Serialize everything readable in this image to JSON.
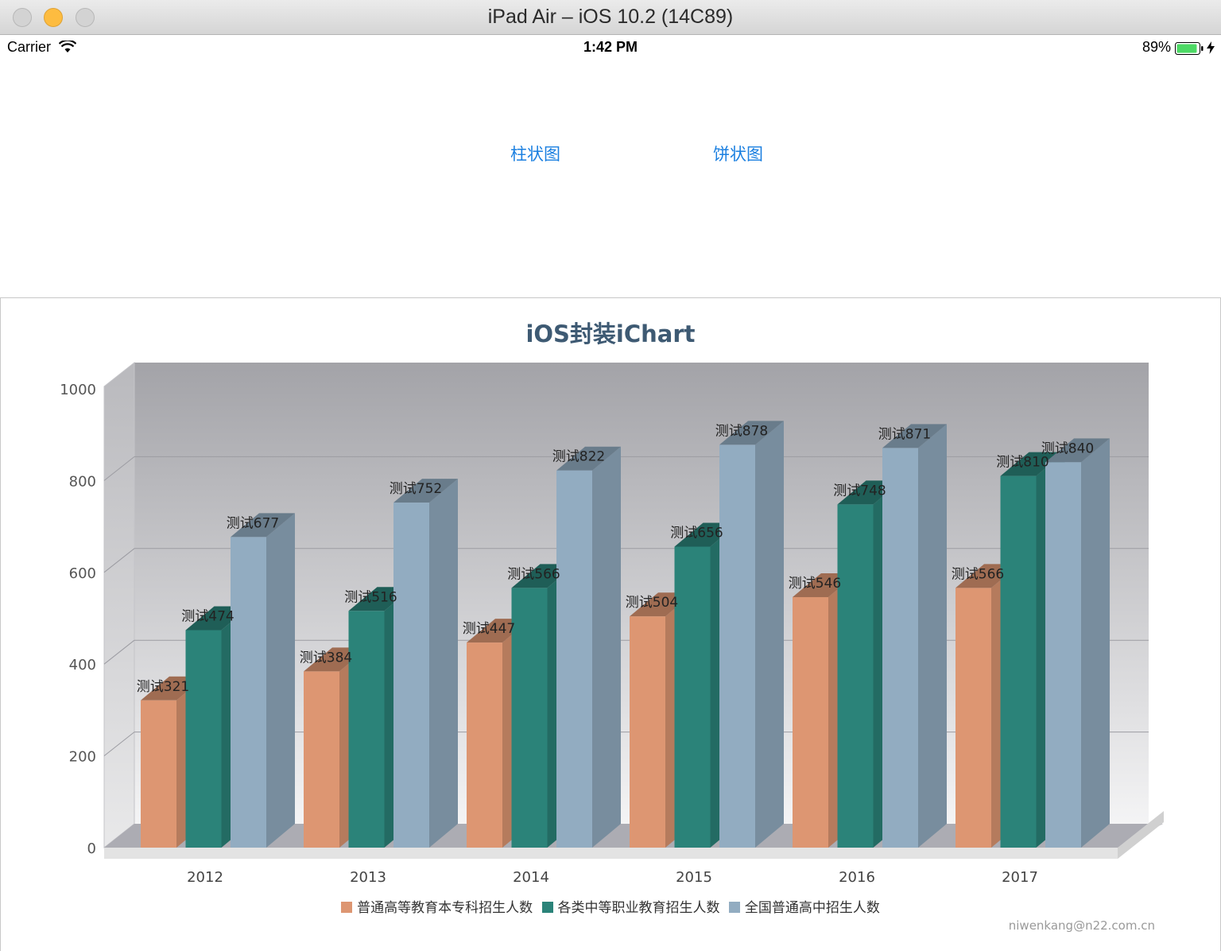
{
  "window": {
    "title": "iPad Air – iOS 10.2 (14C89)"
  },
  "status_bar": {
    "carrier": "Carrier",
    "time": "1:42 PM",
    "battery": "89%"
  },
  "segments": {
    "bar_label": "柱状图",
    "pie_label": "饼状图"
  },
  "footnote": "niwenkang@n22.com.cn",
  "colors": {
    "series1": "#dd9672",
    "series2": "#2b8379",
    "series3": "#92acc1",
    "title": "#3e5a73",
    "link": "#1a7fe0"
  },
  "chart_data": {
    "type": "bar",
    "title": "iOS封装iChart",
    "categories": [
      "2012",
      "2013",
      "2014",
      "2015",
      "2016",
      "2017"
    ],
    "series": [
      {
        "name": "普通高等教育本专科招生人数",
        "values": [
          321,
          384,
          447,
          504,
          546,
          566
        ]
      },
      {
        "name": "各类中等职业教育招生人数",
        "values": [
          474,
          516,
          566,
          656,
          748,
          810
        ]
      },
      {
        "name": "全国普通高中招生人数",
        "values": [
          677,
          752,
          822,
          878,
          871,
          840
        ]
      }
    ],
    "label_prefix": "测试",
    "y_ticks": [
      0,
      200,
      400,
      600,
      800,
      1000
    ],
    "ylim": [
      0,
      1000
    ],
    "grid": true,
    "legend": "bottom",
    "style": "3d"
  }
}
